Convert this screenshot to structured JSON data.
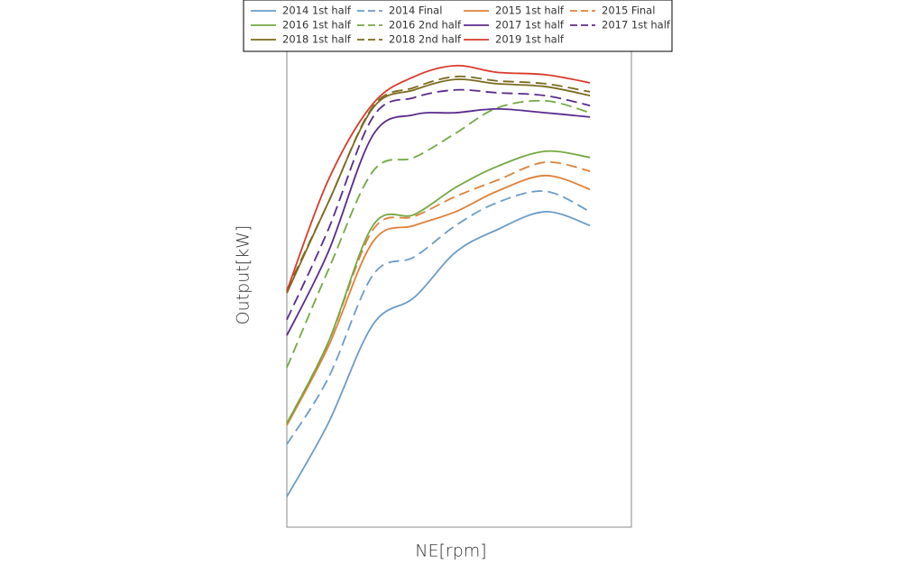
{
  "chart_data": {
    "type": "line",
    "x_label": "NE[rpm]",
    "y_label": "Output[kW]",
    "x": [
      0,
      12,
      25,
      37,
      49,
      61,
      75,
      88
    ],
    "xlim": [
      0,
      100
    ],
    "ylim": [
      0,
      100
    ],
    "series": [
      {
        "name": "2014 1st half",
        "color": "#6b9bc8",
        "dashed": false,
        "values": [
          6.4,
          21.8,
          42.6,
          48.3,
          57.8,
          62.5,
          66.3,
          63.4
        ]
      },
      {
        "name": "2014 Final",
        "color": "#6b9bc8",
        "dashed": true,
        "values": [
          17.4,
          31.3,
          53.0,
          56.8,
          63.4,
          68.2,
          70.6,
          66.3
        ]
      },
      {
        "name": "2015 1st half",
        "color": "#e0803a",
        "dashed": false,
        "values": [
          21.4,
          37.9,
          60.0,
          63.4,
          66.3,
          70.6,
          73.9,
          71.0
        ]
      },
      {
        "name": "2015 Final",
        "color": "#e0803a",
        "dashed": true,
        "values": [
          21.8,
          38.8,
          62.5,
          65.3,
          69.5,
          72.9,
          76.7,
          74.8
        ]
      },
      {
        "name": "2016 1st half",
        "color": "#74a843",
        "dashed": false,
        "values": [
          21.8,
          38.8,
          63.4,
          65.7,
          71.4,
          75.8,
          79.0,
          77.7
        ]
      },
      {
        "name": "2016 2nd half",
        "color": "#74a843",
        "dashed": true,
        "values": [
          33.5,
          54.0,
          74.8,
          77.7,
          82.8,
          88.1,
          89.6,
          87.1
        ]
      },
      {
        "name": "2017 1st half",
        "color": "#5a2a8c",
        "dashed": false,
        "values": [
          40.3,
          57.8,
          82.4,
          86.7,
          87.1,
          87.9,
          87.1,
          86.2
        ]
      },
      {
        "name": "2017 1st half",
        "color": "#5a2a8c",
        "dashed": true,
        "values": [
          43.6,
          62.5,
          86.2,
          90.3,
          91.9,
          91.3,
          90.7,
          88.6
        ]
      },
      {
        "name": "2018 1st half",
        "color": "#7a6a1e",
        "dashed": false,
        "values": [
          49.2,
          68.2,
          88.1,
          91.9,
          94.1,
          93.2,
          92.6,
          90.7
        ]
      },
      {
        "name": "2018 2nd half",
        "color": "#7a6a1e",
        "dashed": true,
        "values": [
          49.8,
          68.2,
          88.4,
          92.4,
          94.7,
          93.8,
          93.2,
          91.5
        ]
      },
      {
        "name": "2019 1st half",
        "color": "#d93a2a",
        "dashed": false,
        "values": [
          49.6,
          72.9,
          89.0,
          94.7,
          97.0,
          95.6,
          95.1,
          93.4
        ]
      }
    ]
  }
}
